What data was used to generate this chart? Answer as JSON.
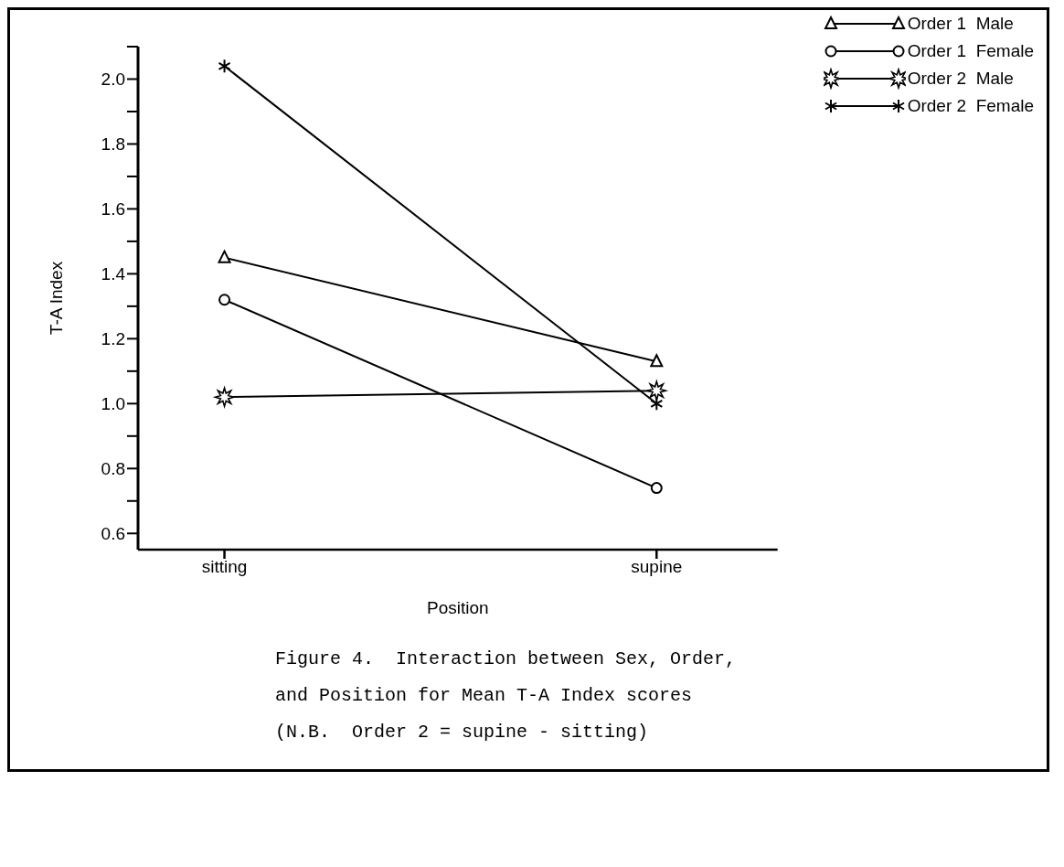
{
  "chart_data": {
    "type": "line",
    "xlabel": "Position",
    "ylabel": "T-A Index",
    "categories": [
      "sitting",
      "supine"
    ],
    "series": [
      {
        "name": "Order 1  Male",
        "color": "#000000",
        "marker": "triangle",
        "values": [
          1.45,
          1.13
        ]
      },
      {
        "name": "Order 1  Female",
        "color": "#000000",
        "marker": "circle",
        "values": [
          1.32,
          0.74
        ]
      },
      {
        "name": "Order 2  Male",
        "color": "#000000",
        "marker": "star",
        "values": [
          1.02,
          1.04
        ]
      },
      {
        "name": "Order 2  Female",
        "color": "#000000",
        "marker": "cross",
        "values": [
          2.04,
          1.0
        ]
      }
    ],
    "ylim": [
      0.55,
      2.1
    ],
    "yticks": [
      0.6,
      {
        "value": 0.7,
        "label": null
      },
      0.8,
      {
        "value": 0.9,
        "label": null
      },
      {
        "value": 1.0,
        "label": "1.0"
      },
      {
        "value": 1.1,
        "label": null
      },
      1.2,
      {
        "value": 1.3,
        "label": null
      },
      1.4,
      {
        "value": 1.5,
        "label": null
      },
      1.6,
      {
        "value": 1.7,
        "label": null
      },
      1.8,
      {
        "value": 1.9,
        "label": null
      },
      {
        "value": 2.0,
        "label": "2.0"
      },
      {
        "value": 2.1,
        "label": null
      }
    ],
    "grid": false,
    "legend": "top right",
    "line_style": "solid",
    "annotations": [
      "Figure 4.  Interaction between Sex, Order,",
      "and Position for Mean T-A Index scores",
      "(N.B.  Order 2 = supine - sitting)"
    ]
  }
}
